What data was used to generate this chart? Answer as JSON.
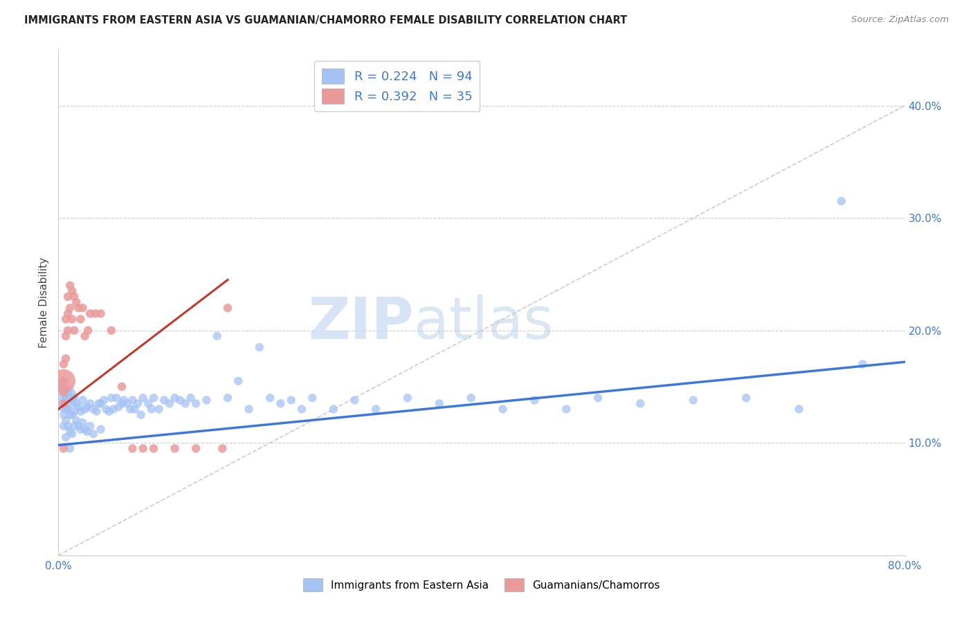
{
  "title": "IMMIGRANTS FROM EASTERN ASIA VS GUAMANIAN/CHAMORRO FEMALE DISABILITY CORRELATION CHART",
  "source": "Source: ZipAtlas.com",
  "ylabel": "Female Disability",
  "y_ticks": [
    "10.0%",
    "20.0%",
    "30.0%",
    "40.0%"
  ],
  "y_tick_vals": [
    0.1,
    0.2,
    0.3,
    0.4
  ],
  "xlim": [
    0.0,
    0.8
  ],
  "ylim": [
    0.0,
    0.45
  ],
  "blue_color": "#a4c2f4",
  "pink_color": "#ea9999",
  "blue_line_color": "#3c78d8",
  "pink_line_color": "#c0392b",
  "ref_line_color": "#cccccc",
  "legend_label_blue": "R = 0.224   N = 94",
  "legend_label_pink": "R = 0.392   N = 35",
  "legend_bottom_blue": "Immigrants from Eastern Asia",
  "legend_bottom_pink": "Guamanians/Chamorros",
  "watermark_zip": "ZIP",
  "watermark_atlas": "atlas",
  "blue_scatter_x": [
    0.005,
    0.005,
    0.005,
    0.007,
    0.007,
    0.007,
    0.007,
    0.009,
    0.009,
    0.009,
    0.011,
    0.011,
    0.011,
    0.011,
    0.013,
    0.013,
    0.013,
    0.015,
    0.015,
    0.015,
    0.017,
    0.017,
    0.019,
    0.019,
    0.021,
    0.021,
    0.023,
    0.023,
    0.025,
    0.025,
    0.027,
    0.027,
    0.03,
    0.03,
    0.033,
    0.033,
    0.036,
    0.038,
    0.04,
    0.04,
    0.043,
    0.045,
    0.048,
    0.05,
    0.052,
    0.055,
    0.057,
    0.06,
    0.062,
    0.065,
    0.068,
    0.07,
    0.072,
    0.075,
    0.078,
    0.08,
    0.085,
    0.088,
    0.09,
    0.095,
    0.1,
    0.105,
    0.11,
    0.115,
    0.12,
    0.125,
    0.13,
    0.14,
    0.15,
    0.16,
    0.17,
    0.18,
    0.19,
    0.2,
    0.21,
    0.22,
    0.23,
    0.24,
    0.26,
    0.28,
    0.3,
    0.33,
    0.36,
    0.39,
    0.42,
    0.45,
    0.48,
    0.51,
    0.55,
    0.6,
    0.65,
    0.7,
    0.74,
    0.76
  ],
  "blue_scatter_y": [
    0.135,
    0.125,
    0.115,
    0.14,
    0.13,
    0.12,
    0.105,
    0.145,
    0.13,
    0.115,
    0.14,
    0.125,
    0.11,
    0.095,
    0.138,
    0.125,
    0.108,
    0.14,
    0.128,
    0.115,
    0.135,
    0.12,
    0.132,
    0.115,
    0.128,
    0.112,
    0.138,
    0.118,
    0.13,
    0.112,
    0.132,
    0.11,
    0.135,
    0.115,
    0.13,
    0.108,
    0.128,
    0.135,
    0.135,
    0.112,
    0.138,
    0.13,
    0.128,
    0.14,
    0.13,
    0.14,
    0.132,
    0.135,
    0.138,
    0.135,
    0.13,
    0.138,
    0.13,
    0.135,
    0.125,
    0.14,
    0.135,
    0.13,
    0.14,
    0.13,
    0.138,
    0.135,
    0.14,
    0.138,
    0.135,
    0.14,
    0.135,
    0.138,
    0.195,
    0.14,
    0.155,
    0.13,
    0.185,
    0.14,
    0.135,
    0.138,
    0.13,
    0.14,
    0.13,
    0.138,
    0.13,
    0.14,
    0.135,
    0.14,
    0.13,
    0.138,
    0.13,
    0.14,
    0.135,
    0.138,
    0.14,
    0.13,
    0.315,
    0.17
  ],
  "blue_big_x": [
    0.005
  ],
  "blue_big_y": [
    0.14
  ],
  "blue_big_size": [
    800
  ],
  "pink_scatter_x": [
    0.005,
    0.005,
    0.005,
    0.005,
    0.005,
    0.007,
    0.007,
    0.007,
    0.009,
    0.009,
    0.009,
    0.011,
    0.011,
    0.013,
    0.013,
    0.015,
    0.015,
    0.017,
    0.019,
    0.021,
    0.023,
    0.025,
    0.028,
    0.03,
    0.035,
    0.04,
    0.05,
    0.06,
    0.07,
    0.08,
    0.09,
    0.11,
    0.13,
    0.155,
    0.16
  ],
  "pink_scatter_y": [
    0.17,
    0.155,
    0.145,
    0.135,
    0.095,
    0.21,
    0.195,
    0.175,
    0.23,
    0.215,
    0.2,
    0.24,
    0.22,
    0.235,
    0.21,
    0.23,
    0.2,
    0.225,
    0.22,
    0.21,
    0.22,
    0.195,
    0.2,
    0.215,
    0.215,
    0.215,
    0.2,
    0.15,
    0.095,
    0.095,
    0.095,
    0.095,
    0.095,
    0.095,
    0.22
  ],
  "pink_big_x": [
    0.005
  ],
  "pink_big_y": [
    0.155
  ],
  "pink_big_size": [
    600
  ],
  "blue_trend_x": [
    0.0,
    0.8
  ],
  "blue_trend_y_start": 0.098,
  "blue_trend_y_end": 0.172,
  "pink_trend_x": [
    0.0,
    0.16
  ],
  "pink_trend_y_start": 0.13,
  "pink_trend_y_end": 0.245,
  "ref_line_x": [
    0.0,
    0.8
  ],
  "ref_line_y": [
    0.0,
    0.4
  ],
  "dot_size": 80
}
